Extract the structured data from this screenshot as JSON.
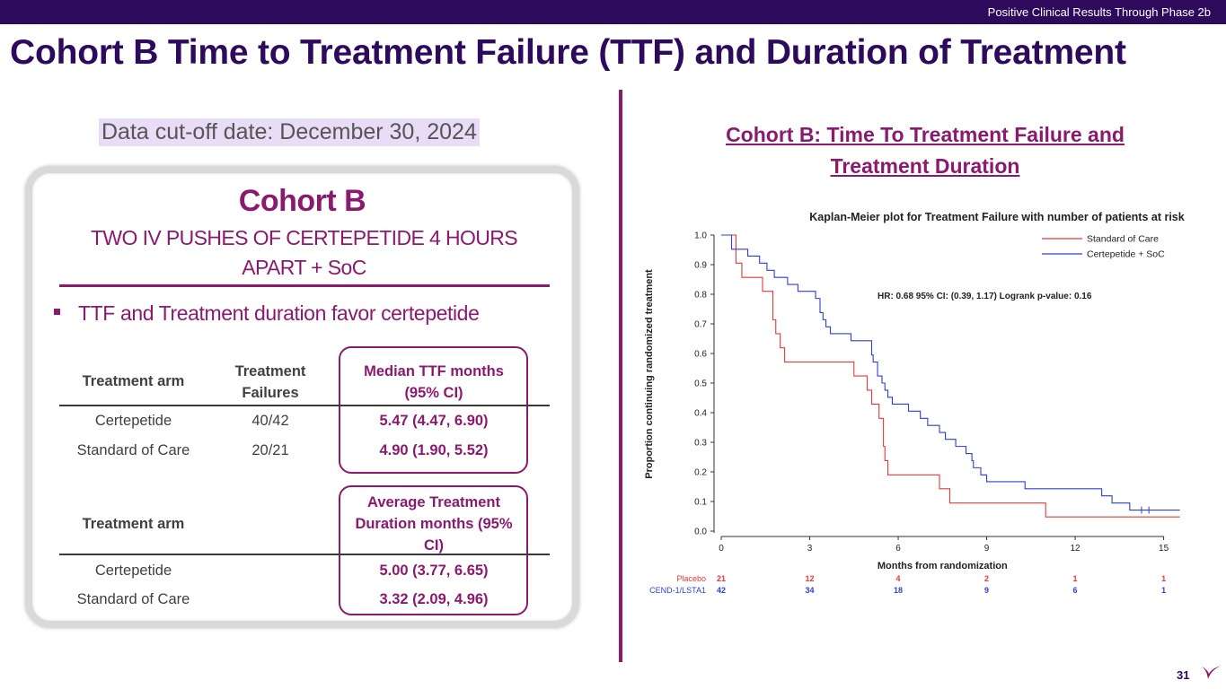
{
  "header": {
    "section": "Positive Clinical Results Through Phase 2b",
    "title": "Cohort B Time to Treatment Failure (TTF) and Duration of Treatment",
    "page_number": "31"
  },
  "left": {
    "cutoff": "Data cut-off date: December 30, 2024",
    "card_title": "Cohort B",
    "card_subtitle": "TWO IV PUSHES OF CERTEPETIDE 4 HOURS APART + SoC",
    "bullet": "TTF and Treatment duration favor certepetide",
    "table1": {
      "headers": [
        "Treatment arm",
        "Treatment Failures",
        "Median TTF months (95% CI)"
      ],
      "rows": [
        [
          "Certepetide",
          "40/42",
          "5.47 (4.47, 6.90)"
        ],
        [
          "Standard of Care",
          "20/21",
          "4.90 (1.90, 5.52)"
        ]
      ]
    },
    "table2": {
      "headers": [
        "Treatment arm",
        "Average Treatment Duration months (95% CI)"
      ],
      "rows": [
        [
          "Certepetide",
          "5.00 (3.77, 6.65)"
        ],
        [
          "Standard of Care",
          "3.32 (2.09, 4.96)"
        ]
      ]
    }
  },
  "right": {
    "chart_heading": "Cohort B: Time To Treatment Failure and Treatment Duration"
  },
  "colors": {
    "brand_dark": "#2e0a5c",
    "brand_accent": "#8a1a6e",
    "soc_line": "#e03a3a",
    "cert_line": "#2f3fd0"
  },
  "chart_data": {
    "type": "line",
    "title": "Kaplan-Meier plot for Treatment Failure with number of patients at risk",
    "xlabel": "Months from randomization",
    "ylabel": "Proportion continuing randomized treatment",
    "xlim": [
      0,
      15.5
    ],
    "ylim": [
      0,
      1.0
    ],
    "xticks": [
      0,
      3,
      6,
      9,
      12,
      15
    ],
    "yticks": [
      0.0,
      0.1,
      0.2,
      0.3,
      0.4,
      0.5,
      0.6,
      0.7,
      0.8,
      0.9,
      1.0
    ],
    "annotation": "HR: 0.68  95% CI: (0.39, 1.17)     Logrank p-value:  0.16",
    "legend_position": "top-right",
    "series": [
      {
        "name": "Standard of Care",
        "color": "#e03a3a",
        "steps": [
          [
            0,
            1.0
          ],
          [
            0.5,
            0.905
          ],
          [
            0.7,
            0.857
          ],
          [
            1.4,
            0.81
          ],
          [
            1.75,
            0.714
          ],
          [
            1.85,
            0.667
          ],
          [
            2.0,
            0.619
          ],
          [
            2.15,
            0.571
          ],
          [
            4.5,
            0.524
          ],
          [
            4.95,
            0.476
          ],
          [
            5.1,
            0.429
          ],
          [
            5.35,
            0.381
          ],
          [
            5.5,
            0.286
          ],
          [
            5.55,
            0.238
          ],
          [
            5.65,
            0.19
          ],
          [
            7.4,
            0.143
          ],
          [
            7.75,
            0.095
          ],
          [
            11.0,
            0.048
          ],
          [
            15.55,
            0.048
          ]
        ]
      },
      {
        "name": "Certepetide + SoC",
        "color": "#2f3fd0",
        "steps": [
          [
            0,
            1.0
          ],
          [
            0.35,
            0.952
          ],
          [
            0.9,
            0.929
          ],
          [
            1.3,
            0.905
          ],
          [
            1.55,
            0.881
          ],
          [
            1.8,
            0.857
          ],
          [
            2.25,
            0.833
          ],
          [
            2.6,
            0.81
          ],
          [
            3.2,
            0.786
          ],
          [
            3.35,
            0.738
          ],
          [
            3.45,
            0.714
          ],
          [
            3.55,
            0.69
          ],
          [
            3.7,
            0.667
          ],
          [
            4.4,
            0.643
          ],
          [
            5.1,
            0.595
          ],
          [
            5.15,
            0.571
          ],
          [
            5.3,
            0.524
          ],
          [
            5.45,
            0.5
          ],
          [
            5.55,
            0.476
          ],
          [
            5.65,
            0.452
          ],
          [
            5.8,
            0.429
          ],
          [
            6.35,
            0.405
          ],
          [
            6.75,
            0.381
          ],
          [
            7.0,
            0.357
          ],
          [
            7.4,
            0.333
          ],
          [
            7.6,
            0.31
          ],
          [
            7.95,
            0.286
          ],
          [
            8.3,
            0.262
          ],
          [
            8.5,
            0.238
          ],
          [
            8.55,
            0.214
          ],
          [
            8.8,
            0.19
          ],
          [
            9.0,
            0.167
          ],
          [
            10.3,
            0.143
          ],
          [
            12.9,
            0.119
          ],
          [
            13.25,
            0.095
          ],
          [
            13.85,
            0.071
          ],
          [
            15.55,
            0.071
          ]
        ],
        "censored": [
          14.25,
          14.5
        ]
      }
    ],
    "at_risk": {
      "times": [
        0,
        3,
        6,
        9,
        12,
        15
      ],
      "rows": [
        {
          "label": "Placebo",
          "color": "#e03a3a",
          "values": [
            "21",
            "12",
            "4",
            "2",
            "1",
            "1"
          ]
        },
        {
          "label": "CEND-1/LSTA1",
          "color": "#2f3fd0",
          "values": [
            "42",
            "34",
            "18",
            "9",
            "6",
            "1"
          ]
        }
      ]
    }
  }
}
